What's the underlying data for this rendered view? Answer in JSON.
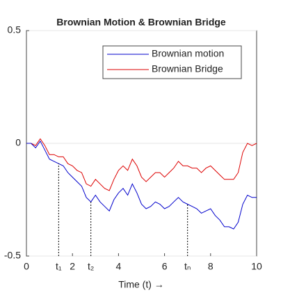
{
  "chart_data": {
    "type": "line",
    "title": "Brownian Motion & Brownian Bridge",
    "x_label": "Time (t) →",
    "x": [
      0,
      0.2,
      0.4,
      0.6,
      0.8,
      1,
      1.2,
      1.4,
      1.6,
      1.8,
      2,
      2.2,
      2.4,
      2.6,
      2.8,
      3,
      3.2,
      3.4,
      3.6,
      3.8,
      4,
      4.2,
      4.4,
      4.6,
      4.8,
      5,
      5.2,
      5.4,
      5.6,
      5.8,
      6,
      6.2,
      6.4,
      6.6,
      6.8,
      7,
      7.2,
      7.4,
      7.6,
      7.8,
      8,
      8.2,
      8.4,
      8.6,
      8.8,
      9,
      9.2,
      9.4,
      9.6,
      9.8,
      10
    ],
    "series": [
      {
        "name": "Brownian motion",
        "color": "#0000cc",
        "values": [
          0,
          0,
          -0.02,
          0.01,
          -0.03,
          -0.07,
          -0.08,
          -0.09,
          -0.1,
          -0.13,
          -0.15,
          -0.17,
          -0.19,
          -0.24,
          -0.26,
          -0.23,
          -0.26,
          -0.28,
          -0.3,
          -0.25,
          -0.22,
          -0.2,
          -0.23,
          -0.18,
          -0.22,
          -0.27,
          -0.29,
          -0.28,
          -0.26,
          -0.27,
          -0.29,
          -0.28,
          -0.26,
          -0.24,
          -0.26,
          -0.27,
          -0.28,
          -0.29,
          -0.31,
          -0.3,
          -0.29,
          -0.32,
          -0.34,
          -0.37,
          -0.37,
          -0.38,
          -0.35,
          -0.27,
          -0.23,
          -0.24,
          -0.24
        ]
      },
      {
        "name": "Brownian Bridge",
        "color": "#dd0000",
        "values": [
          0,
          0,
          -0.01,
          0.02,
          -0.01,
          -0.05,
          -0.05,
          -0.06,
          -0.06,
          -0.09,
          -0.1,
          -0.12,
          -0.13,
          -0.18,
          -0.19,
          -0.16,
          -0.18,
          -0.2,
          -0.21,
          -0.16,
          -0.12,
          -0.1,
          -0.12,
          -0.07,
          -0.1,
          -0.15,
          -0.17,
          -0.15,
          -0.13,
          -0.13,
          -0.15,
          -0.13,
          -0.11,
          -0.08,
          -0.1,
          -0.1,
          -0.11,
          -0.11,
          -0.13,
          -0.11,
          -0.1,
          -0.12,
          -0.14,
          -0.16,
          -0.16,
          -0.16,
          -0.13,
          -0.04,
          0,
          -0.01,
          0
        ]
      }
    ],
    "markers": [
      {
        "label": "t₁",
        "x": 1.4,
        "y": -0.09
      },
      {
        "label": "t₂",
        "x": 2.8,
        "y": -0.26
      },
      {
        "label": "tₙ",
        "x": 7,
        "y": -0.27
      }
    ],
    "xlim": [
      0,
      10
    ],
    "ylim": [
      -0.5,
      0.5
    ],
    "xticks": [
      0,
      2,
      4,
      6,
      8,
      10
    ],
    "yticks": [
      -0.5,
      0,
      0.5
    ],
    "grid": true,
    "legend": "upper right"
  }
}
